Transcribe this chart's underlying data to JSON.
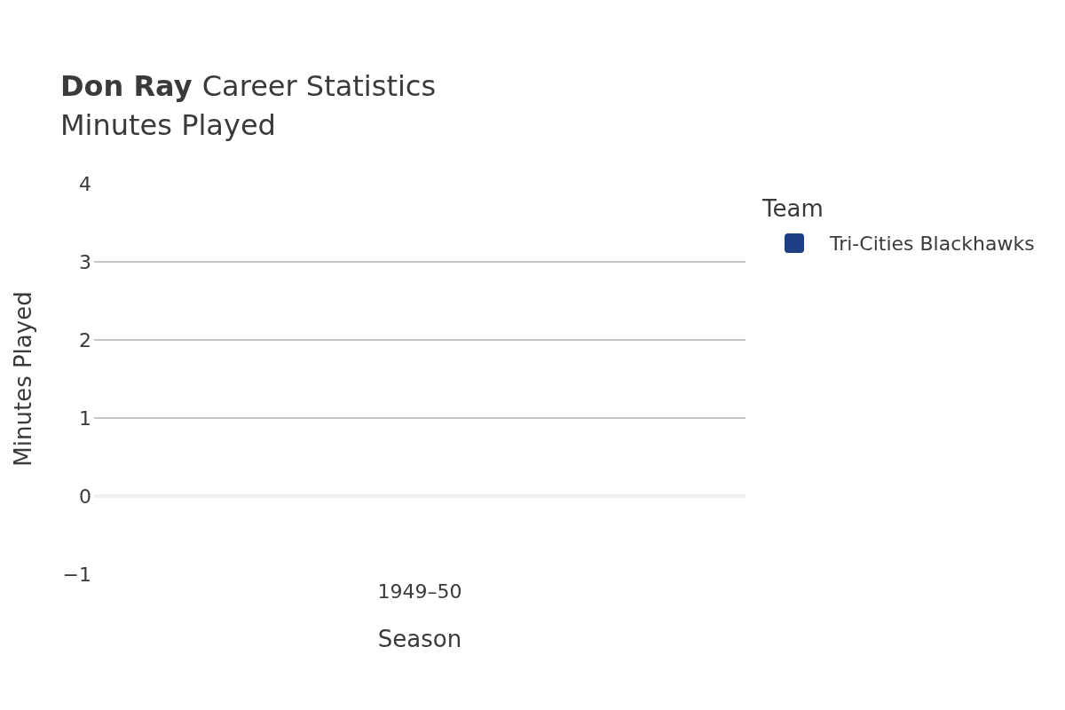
{
  "chart_data": {
    "type": "bar",
    "title": "Don Ray Career Statistics",
    "subtitle": "Minutes Played",
    "xlabel": "Season",
    "ylabel": "Minutes Played",
    "legend_title": "Team",
    "categories": [
      "1949–50"
    ],
    "series": [
      {
        "name": "Tri-Cities Blackhawks",
        "color": "#1c3f86",
        "values": [
          0
        ]
      }
    ],
    "ylim": [
      -1,
      4
    ],
    "yticks": [
      {
        "value": -1,
        "label": "−1"
      },
      0,
      1,
      2,
      3,
      4
    ],
    "grid": "y",
    "legend": "right"
  }
}
